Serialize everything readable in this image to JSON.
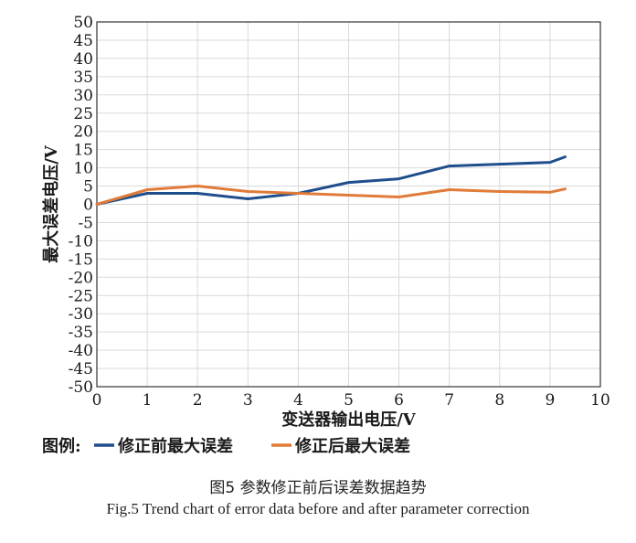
{
  "chart_data": {
    "type": "line",
    "xlabel": "变送器输出电压/V",
    "ylabel": "最大误差电压/V",
    "xlim": [
      0,
      10
    ],
    "ylim": [
      -50,
      50
    ],
    "x_ticks": [
      0,
      1,
      2,
      3,
      4,
      5,
      6,
      7,
      8,
      9,
      10
    ],
    "y_ticks": [
      50,
      45,
      40,
      35,
      30,
      25,
      20,
      15,
      10,
      5,
      0,
      -5,
      -10,
      -15,
      -20,
      -25,
      -30,
      -35,
      -40,
      -45,
      -50
    ],
    "grid": true,
    "legend_title": "图例:",
    "legend_position": "bottom-left",
    "series": [
      {
        "name": "修正前最大误差",
        "color": "#1f4e8c",
        "x": [
          0,
          1,
          2,
          3,
          4,
          5,
          6,
          7,
          8,
          9,
          9.3
        ],
        "y": [
          0,
          3,
          3,
          1.5,
          3,
          6,
          7,
          10.5,
          11,
          11.5,
          13
        ]
      },
      {
        "name": "修正后最大误差",
        "color": "#e07b39",
        "x": [
          0,
          1,
          2,
          3,
          4,
          5,
          6,
          7,
          8,
          9,
          9.3
        ],
        "y": [
          0,
          4,
          5,
          3.5,
          3,
          2.5,
          2,
          4,
          3.5,
          3.3,
          4.2
        ]
      }
    ]
  },
  "caption": {
    "chinese": "图5    参数修正前后误差数据趋势",
    "english": "Fig.5    Trend chart of error data before and after parameter correction"
  }
}
